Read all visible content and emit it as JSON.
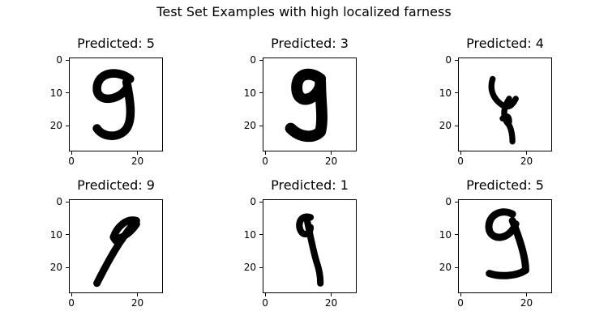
{
  "figure": {
    "title": "Test Set Examples with high localized farness"
  },
  "panels": [
    {
      "title": "Predicted: 5",
      "glyph": "9-round-hook"
    },
    {
      "title": "Predicted: 3",
      "glyph": "9-bold"
    },
    {
      "title": "Predicted: 4",
      "glyph": "4-like-9"
    },
    {
      "title": "Predicted: 9",
      "glyph": "9-slanted"
    },
    {
      "title": "Predicted: 1",
      "glyph": "9-thin"
    },
    {
      "title": "Predicted: 5",
      "glyph": "9-wide-hook"
    }
  ],
  "axes": {
    "yticks": [
      "0",
      "10",
      "20"
    ],
    "xticks": [
      "0",
      "20"
    ]
  },
  "colors": {
    "ink": "#000000",
    "background": "#ffffff"
  }
}
